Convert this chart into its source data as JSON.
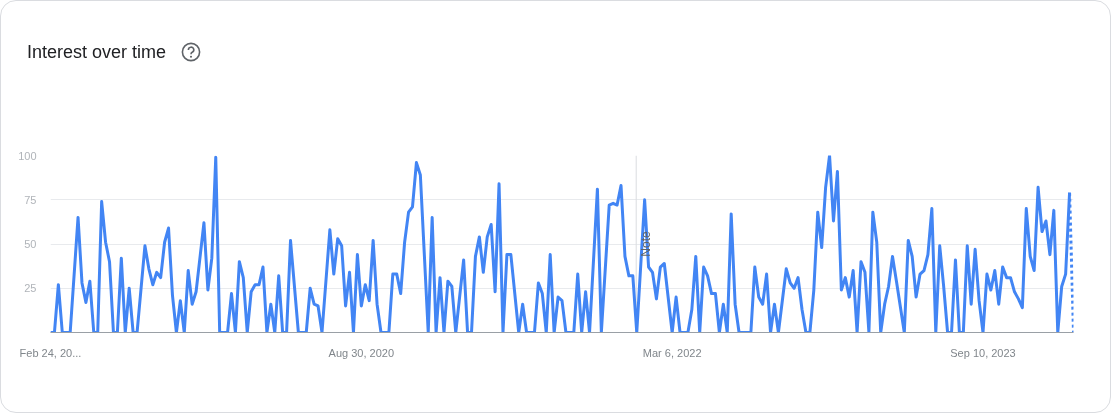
{
  "chart_data": {
    "type": "line",
    "title": "Interest over time",
    "xlim": [
      "2019-02-24",
      "2024-02-18"
    ],
    "ylim": [
      0,
      100
    ],
    "xticks": [
      {
        "value": "2019-02-24",
        "label": "Feb 24, 20..."
      },
      {
        "value": "2020-08-30",
        "label": "Aug 30, 2020"
      },
      {
        "value": "2022-03-06",
        "label": "Mar 6, 2022"
      },
      {
        "value": "2023-09-10",
        "label": "Sep 10, 2023"
      }
    ],
    "yticks": [
      25,
      50,
      75,
      100
    ],
    "grid": "y",
    "line_style": "solid",
    "ref_lines": [
      {
        "axis": "x",
        "value": "2022-01-01",
        "label": "Note",
        "color": "#dadce0"
      }
    ],
    "series": [
      {
        "color": "#4285f4",
        "x": [
          "2019-02-24",
          "2019-03-03",
          "2019-03-10",
          "2019-03-17",
          "2019-03-31",
          "2019-04-14",
          "2019-04-21",
          "2019-04-28",
          "2019-05-05",
          "2019-05-12",
          "2019-05-19",
          "2019-05-26",
          "2019-06-02",
          "2019-06-09",
          "2019-06-16",
          "2019-06-23",
          "2019-06-30",
          "2019-07-07",
          "2019-07-14",
          "2019-07-21",
          "2019-07-28",
          "2019-08-11",
          "2019-08-18",
          "2019-08-25",
          "2019-09-01",
          "2019-09-08",
          "2019-09-15",
          "2019-09-22",
          "2019-09-29",
          "2019-10-06",
          "2019-10-13",
          "2019-10-20",
          "2019-10-27",
          "2019-11-03",
          "2019-11-10",
          "2019-11-24",
          "2019-12-01",
          "2019-12-08",
          "2019-12-15",
          "2019-12-22",
          "2020-01-05",
          "2020-01-12",
          "2020-01-19",
          "2020-01-26",
          "2020-02-02",
          "2020-02-09",
          "2020-02-16",
          "2020-02-23",
          "2020-03-01",
          "2020-03-08",
          "2020-03-15",
          "2020-03-22",
          "2020-03-29",
          "2020-04-05",
          "2020-04-12",
          "2020-04-19",
          "2020-04-26",
          "2020-05-10",
          "2020-05-24",
          "2020-05-31",
          "2020-06-07",
          "2020-06-14",
          "2020-06-21",
          "2020-07-05",
          "2020-07-12",
          "2020-07-19",
          "2020-07-26",
          "2020-08-02",
          "2020-08-09",
          "2020-08-16",
          "2020-08-23",
          "2020-08-30",
          "2020-09-06",
          "2020-09-13",
          "2020-09-20",
          "2020-09-27",
          "2020-10-04",
          "2020-10-18",
          "2020-10-25",
          "2020-11-01",
          "2020-11-08",
          "2020-11-15",
          "2020-11-22",
          "2020-11-29",
          "2020-12-06",
          "2020-12-13",
          "2020-12-27",
          "2021-01-03",
          "2021-01-10",
          "2021-01-17",
          "2021-01-24",
          "2021-01-31",
          "2021-02-07",
          "2021-02-14",
          "2021-02-28",
          "2021-03-07",
          "2021-03-14",
          "2021-03-21",
          "2021-03-28",
          "2021-04-04",
          "2021-04-11",
          "2021-04-18",
          "2021-04-25",
          "2021-05-02",
          "2021-05-09",
          "2021-05-16",
          "2021-05-23",
          "2021-06-06",
          "2021-06-13",
          "2021-06-20",
          "2021-07-04",
          "2021-07-11",
          "2021-07-18",
          "2021-07-25",
          "2021-08-01",
          "2021-08-08",
          "2021-08-15",
          "2021-08-22",
          "2021-08-29",
          "2021-09-12",
          "2021-09-19",
          "2021-09-26",
          "2021-10-03",
          "2021-10-10",
          "2021-10-24",
          "2021-10-31",
          "2021-11-14",
          "2021-11-21",
          "2021-11-28",
          "2021-12-05",
          "2021-12-12",
          "2021-12-19",
          "2021-12-26",
          "2022-01-02",
          "2022-01-16",
          "2022-01-23",
          "2022-01-30",
          "2022-02-06",
          "2022-02-13",
          "2022-02-20",
          "2022-03-06",
          "2022-03-13",
          "2022-03-20",
          "2022-04-03",
          "2022-04-10",
          "2022-04-17",
          "2022-04-24",
          "2022-05-01",
          "2022-05-08",
          "2022-05-15",
          "2022-05-22",
          "2022-05-29",
          "2022-06-05",
          "2022-06-12",
          "2022-06-19",
          "2022-06-26",
          "2022-07-03",
          "2022-07-24",
          "2022-07-31",
          "2022-08-07",
          "2022-08-14",
          "2022-08-21",
          "2022-08-28",
          "2022-09-04",
          "2022-09-11",
          "2022-09-25",
          "2022-10-02",
          "2022-10-09",
          "2022-10-16",
          "2022-10-23",
          "2022-10-30",
          "2022-11-06",
          "2022-11-13",
          "2022-11-20",
          "2022-11-27",
          "2022-12-04",
          "2022-12-11",
          "2022-12-18",
          "2022-12-25",
          "2023-01-01",
          "2023-01-08",
          "2023-01-15",
          "2023-01-22",
          "2023-01-29",
          "2023-02-05",
          "2023-02-12",
          "2023-02-19",
          "2023-02-26",
          "2023-03-05",
          "2023-03-12",
          "2023-03-19",
          "2023-03-26",
          "2023-04-02",
          "2023-04-09",
          "2023-04-23",
          "2023-04-30",
          "2023-05-07",
          "2023-05-14",
          "2023-05-21",
          "2023-05-28",
          "2023-06-04",
          "2023-06-11",
          "2023-06-18",
          "2023-06-25",
          "2023-07-02",
          "2023-07-09",
          "2023-07-16",
          "2023-07-23",
          "2023-07-30",
          "2023-08-06",
          "2023-08-13",
          "2023-08-20",
          "2023-08-27",
          "2023-09-03",
          "2023-09-10",
          "2023-09-17",
          "2023-09-24",
          "2023-10-01",
          "2023-10-08",
          "2023-10-15",
          "2023-10-22",
          "2023-10-29",
          "2023-11-05",
          "2023-11-12",
          "2023-11-19",
          "2023-11-26",
          "2023-12-03",
          "2023-12-10",
          "2023-12-17",
          "2023-12-24",
          "2023-12-31",
          "2024-01-07",
          "2024-01-14",
          "2024-01-21",
          "2024-01-28",
          "2024-02-04",
          "2024-02-11"
        ],
        "values": [
          0,
          0,
          27,
          0,
          0,
          65,
          28,
          17,
          29,
          0,
          0,
          74,
          51,
          40,
          0,
          0,
          42,
          0,
          25,
          0,
          0,
          49,
          36,
          27,
          34,
          31,
          51,
          59,
          21,
          0,
          18,
          0,
          35,
          16,
          23,
          62,
          24,
          42,
          99,
          0,
          0,
          22,
          0,
          40,
          31,
          0,
          23,
          27,
          27,
          37,
          0,
          16,
          0,
          32,
          0,
          0,
          52,
          0,
          0,
          25,
          16,
          15,
          0,
          58,
          33,
          53,
          49,
          15,
          34,
          0,
          44,
          15,
          27,
          18,
          52,
          16,
          0,
          0,
          33,
          33,
          22,
          51,
          68,
          71,
          96,
          89,
          0,
          65,
          0,
          31,
          0,
          29,
          26,
          0,
          41,
          0,
          0,
          43,
          54,
          34,
          54,
          61,
          23,
          84,
          0,
          44,
          44,
          0,
          16,
          0,
          0,
          28,
          22,
          0,
          44,
          0,
          20,
          18,
          0,
          0,
          33,
          0,
          23,
          0,
          81,
          0,
          72,
          73,
          72,
          83,
          43,
          32,
          32,
          0,
          75,
          37,
          34,
          19,
          37,
          39,
          0,
          20,
          0,
          0,
          13,
          43,
          0,
          37,
          32,
          22,
          22,
          0,
          16,
          0,
          67,
          16,
          0,
          0,
          37,
          20,
          16,
          33,
          0,
          16,
          0,
          36,
          28,
          25,
          31,
          13,
          0,
          0,
          24,
          68,
          48,
          82,
          100,
          63,
          91,
          24,
          31,
          20,
          35,
          0,
          40,
          34,
          0,
          68,
          51,
          0,
          16,
          26,
          43,
          29,
          0,
          52,
          43,
          20,
          33,
          35,
          44,
          70,
          0,
          49,
          26,
          0,
          0,
          41,
          0,
          0,
          49,
          16,
          47,
          18,
          0,
          33,
          24,
          35,
          16,
          37,
          31,
          31,
          23,
          19,
          14,
          70,
          43,
          35,
          82,
          57,
          63,
          44,
          69,
          0,
          26,
          33,
          79
        ]
      },
      {
        "color": "#4285f4",
        "line_style": "dotted",
        "x": [
          "2024-02-11",
          "2024-02-18"
        ],
        "values": [
          79,
          0
        ]
      }
    ]
  }
}
